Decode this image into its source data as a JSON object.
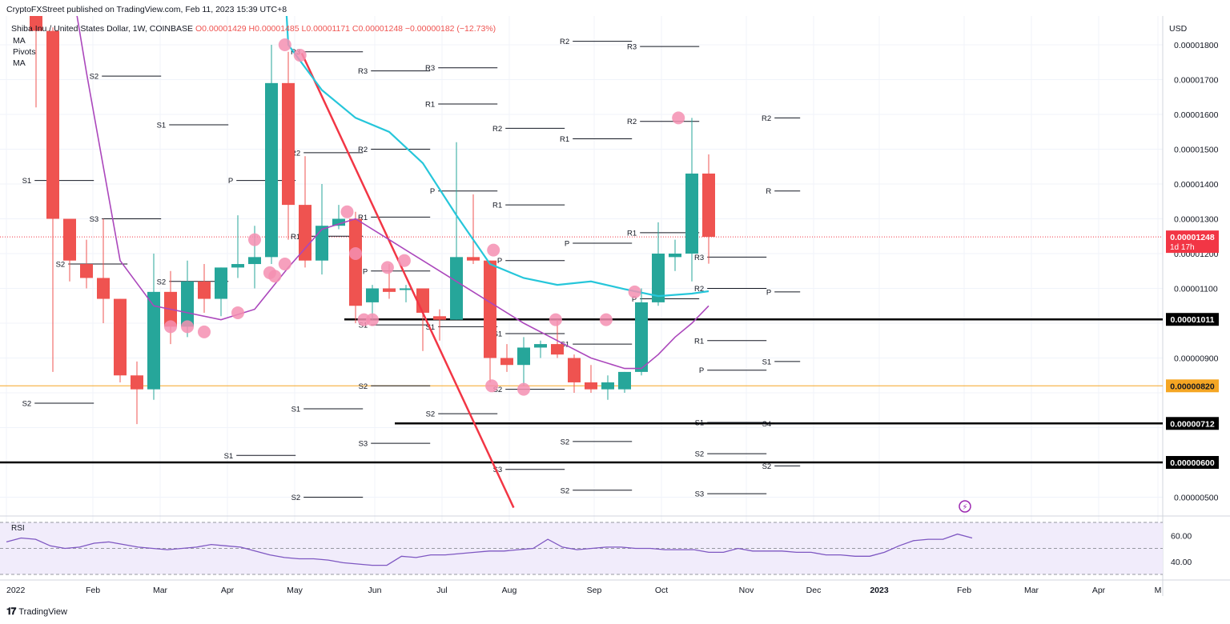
{
  "header": {
    "publisher": "CryptoFXStreet published on TradingView.com, Feb 11, 2023 15:39 UTC+8",
    "symbol": "Shiba Inu / United States Dollar, 1W, COINBASE",
    "ohlc": "O0.00001429  H0.00001485  L0.00001171  C0.00001248  −0.00000182 (−12.73%)"
  },
  "indicators": [
    "MA",
    "Pivots",
    "MA"
  ],
  "branding": "TradingView",
  "colors": {
    "up": "#26a69a",
    "down": "#ef5350",
    "ma_fast": "#ab47bc",
    "ma_slow": "#26c6da",
    "trendline": "#f23645",
    "marker": "#f48fb1",
    "orange_level": "#f5a623",
    "price_tag": "#f23645"
  },
  "chart_data": {
    "type": "candlestick",
    "title": "Shiba Inu / United States Dollar, 1W, COINBASE",
    "y_axis_label": "USD",
    "y_ticks": [
      "0.00001800",
      "0.00001700",
      "0.00001600",
      "0.00001500",
      "0.00001400",
      "0.00001300",
      "0.00001200",
      "0.00001100",
      "0.00000900",
      "0.00000500"
    ],
    "x_ticks": [
      "2022",
      "Feb",
      "Mar",
      "Apr",
      "May",
      "Jun",
      "Jul",
      "Aug",
      "Sep",
      "Oct",
      "Nov",
      "Dec",
      "2023",
      "Feb",
      "Mar",
      "Apr",
      "M"
    ],
    "candles": [
      {
        "o": 1.9,
        "h": 1.95,
        "l": 1.62,
        "c": 1.84
      },
      {
        "o": 1.84,
        "h": 1.85,
        "l": 0.86,
        "c": 1.3
      },
      {
        "o": 1.3,
        "h": 1.3,
        "l": 1.12,
        "c": 1.18
      },
      {
        "o": 1.17,
        "h": 1.24,
        "l": 1.1,
        "c": 1.13
      },
      {
        "o": 1.13,
        "h": 1.3,
        "l": 1.0,
        "c": 1.07
      },
      {
        "o": 1.07,
        "h": 1.07,
        "l": 0.83,
        "c": 0.85
      },
      {
        "o": 0.85,
        "h": 0.89,
        "l": 0.71,
        "c": 0.81
      },
      {
        "o": 0.81,
        "h": 1.2,
        "l": 0.78,
        "c": 1.09
      },
      {
        "o": 1.09,
        "h": 1.15,
        "l": 0.94,
        "c": 0.99
      },
      {
        "o": 0.99,
        "h": 1.18,
        "l": 0.96,
        "c": 1.12
      },
      {
        "o": 1.12,
        "h": 1.17,
        "l": 1.03,
        "c": 1.07
      },
      {
        "o": 1.07,
        "h": 1.16,
        "l": 1.02,
        "c": 1.16
      },
      {
        "o": 1.16,
        "h": 1.31,
        "l": 1.13,
        "c": 1.17
      },
      {
        "o": 1.17,
        "h": 1.28,
        "l": 1.1,
        "c": 1.19
      },
      {
        "o": 1.19,
        "h": 1.8,
        "l": 1.17,
        "c": 1.69
      },
      {
        "o": 1.69,
        "h": 1.78,
        "l": 1.24,
        "c": 1.34
      },
      {
        "o": 1.34,
        "h": 1.48,
        "l": 1.16,
        "c": 1.18
      },
      {
        "o": 1.18,
        "h": 1.4,
        "l": 1.14,
        "c": 1.28
      },
      {
        "o": 1.28,
        "h": 1.34,
        "l": 1.27,
        "c": 1.3
      },
      {
        "o": 1.3,
        "h": 1.32,
        "l": 1.0,
        "c": 1.05
      },
      {
        "o": 1.06,
        "h": 1.11,
        "l": 1.01,
        "c": 1.1
      },
      {
        "o": 1.1,
        "h": 1.17,
        "l": 1.07,
        "c": 1.09
      },
      {
        "o": 1.1,
        "h": 1.11,
        "l": 1.06,
        "c": 1.1
      },
      {
        "o": 1.1,
        "h": 1.1,
        "l": 0.92,
        "c": 1.03
      },
      {
        "o": 1.02,
        "h": 1.04,
        "l": 0.95,
        "c": 1.01
      },
      {
        "o": 1.01,
        "h": 1.52,
        "l": 1.01,
        "c": 1.19
      },
      {
        "o": 1.19,
        "h": 1.37,
        "l": 1.17,
        "c": 1.18
      },
      {
        "o": 1.18,
        "h": 1.18,
        "l": 0.83,
        "c": 0.9
      },
      {
        "o": 0.9,
        "h": 0.94,
        "l": 0.86,
        "c": 0.88
      },
      {
        "o": 0.88,
        "h": 0.96,
        "l": 0.82,
        "c": 0.93
      },
      {
        "o": 0.93,
        "h": 0.95,
        "l": 0.9,
        "c": 0.94
      },
      {
        "o": 0.94,
        "h": 1.01,
        "l": 0.9,
        "c": 0.91
      },
      {
        "o": 0.9,
        "h": 0.91,
        "l": 0.8,
        "c": 0.83
      },
      {
        "o": 0.83,
        "h": 0.88,
        "l": 0.8,
        "c": 0.81
      },
      {
        "o": 0.81,
        "h": 0.85,
        "l": 0.78,
        "c": 0.83
      },
      {
        "o": 0.81,
        "h": 0.86,
        "l": 0.8,
        "c": 0.86
      },
      {
        "o": 0.86,
        "h": 1.1,
        "l": 0.85,
        "c": 1.06
      },
      {
        "o": 1.06,
        "h": 1.29,
        "l": 1.05,
        "c": 1.2
      },
      {
        "o": 1.19,
        "h": 1.24,
        "l": 1.15,
        "c": 1.2
      },
      {
        "o": 1.2,
        "h": 1.59,
        "l": 1.12,
        "c": 1.43
      },
      {
        "o": 1.43,
        "h": 1.485,
        "l": 1.171,
        "c": 1.248
      }
    ],
    "price_unit": "1e-5 USD",
    "horizontal_levels": [
      {
        "price": 1.011,
        "label": "0.00001011",
        "color": "#000000"
      },
      {
        "price": 0.82,
        "label": "0.00000820",
        "color": "#f5a623"
      },
      {
        "price": 0.712,
        "label": "0.00000712",
        "color": "#000000"
      },
      {
        "price": 0.6,
        "label": "0.00000600",
        "color": "#000000"
      }
    ],
    "current_price": {
      "label": "0.00001248",
      "countdown": "1d 17h"
    },
    "ma_fast": [
      [
        1.0,
        2.3
      ],
      [
        3.0,
        1.72
      ],
      [
        5.0,
        1.18
      ],
      [
        7.0,
        1.05
      ],
      [
        9.0,
        1.03
      ],
      [
        11.0,
        1.01
      ],
      [
        13.0,
        1.04
      ],
      [
        15.0,
        1.16
      ],
      [
        17.0,
        1.27
      ],
      [
        19.0,
        1.3
      ],
      [
        21.0,
        1.24
      ],
      [
        23.0,
        1.18
      ],
      [
        25.0,
        1.12
      ],
      [
        27.0,
        1.06
      ],
      [
        29.0,
        1.0
      ],
      [
        31.0,
        0.95
      ],
      [
        33.0,
        0.9
      ],
      [
        35.0,
        0.87
      ],
      [
        36.0,
        0.87
      ],
      [
        37.0,
        0.91
      ],
      [
        38.0,
        0.96
      ],
      [
        39.0,
        1.0
      ],
      [
        40.0,
        1.05
      ]
    ],
    "ma_slow": [
      [
        14.8,
        1.97
      ],
      [
        15.0,
        1.8
      ],
      [
        17.0,
        1.67
      ],
      [
        19.0,
        1.59
      ],
      [
        21.0,
        1.55
      ],
      [
        23.0,
        1.46
      ],
      [
        25.0,
        1.31
      ],
      [
        27.0,
        1.17
      ],
      [
        29.0,
        1.13
      ],
      [
        31.0,
        1.11
      ],
      [
        33.0,
        1.12
      ],
      [
        35.0,
        1.098
      ],
      [
        37.0,
        1.078
      ],
      [
        39.0,
        1.085
      ],
      [
        40.0,
        1.092
      ]
    ],
    "trendline": [
      [
        15.8,
        1.776
      ],
      [
        28.4,
        0.47
      ]
    ],
    "markers": [
      [
        14.8,
        1.8
      ],
      [
        15.7,
        1.77
      ],
      [
        14.8,
        1.17
      ],
      [
        13.0,
        1.24
      ],
      [
        12.0,
        1.03
      ],
      [
        13.9,
        1.145
      ],
      [
        14.2,
        1.135
      ],
      [
        9.0,
        0.99
      ],
      [
        10.0,
        0.975
      ],
      [
        8.0,
        0.99
      ],
      [
        18.5,
        1.32
      ],
      [
        19.0,
        1.2
      ],
      [
        19.5,
        1.01
      ],
      [
        20.0,
        1.01
      ],
      [
        20.9,
        1.16
      ],
      [
        21.9,
        1.18
      ],
      [
        27.2,
        1.21
      ],
      [
        27.1,
        0.82
      ],
      [
        29.0,
        0.81
      ],
      [
        30.9,
        1.01
      ],
      [
        33.9,
        1.01
      ],
      [
        35.6,
        1.09
      ],
      [
        38.2,
        1.59
      ]
    ],
    "pivot_levels": [
      {
        "label": "S2",
        "x1": 5.2,
        "x2": 9.2,
        "y": 1.71
      },
      {
        "label": "S1",
        "x1": 9.2,
        "x2": 13.2,
        "y": 1.57
      },
      {
        "label": "S3",
        "x1": 5.2,
        "x2": 9.2,
        "y": 1.3
      },
      {
        "label": "S2",
        "x1": 9.2,
        "x2": 13.2,
        "y": 1.12
      },
      {
        "label": "S1",
        "x1": 1.2,
        "x2": 5.2,
        "y": 1.41
      },
      {
        "label": "S2",
        "x1": 3.2,
        "x2": 7.2,
        "y": 1.17
      },
      {
        "label": "S2",
        "x1": 1.2,
        "x2": 5.2,
        "y": 0.77
      },
      {
        "label": "P",
        "x1": 13.2,
        "x2": 17.2,
        "y": 1.41
      },
      {
        "label": "S1",
        "x1": 13.2,
        "x2": 17.2,
        "y": 0.62
      },
      {
        "label": "R3",
        "x1": 17.2,
        "x2": 21.2,
        "y": 1.78
      },
      {
        "label": "R2",
        "x1": 17.2,
        "x2": 21.2,
        "y": 1.49
      },
      {
        "label": "R1",
        "x1": 17.2,
        "x2": 21.2,
        "y": 1.25
      },
      {
        "label": "S1",
        "x1": 17.2,
        "x2": 21.2,
        "y": 0.754
      },
      {
        "label": "S2",
        "x1": 17.2,
        "x2": 21.2,
        "y": 0.5
      },
      {
        "label": "R3",
        "x1": 21.2,
        "x2": 25.2,
        "y": 1.725
      },
      {
        "label": "R2",
        "x1": 21.2,
        "x2": 25.2,
        "y": 1.5
      },
      {
        "label": "R1",
        "x1": 21.2,
        "x2": 25.2,
        "y": 1.305
      },
      {
        "label": "P",
        "x1": 21.2,
        "x2": 25.2,
        "y": 1.15
      },
      {
        "label": "S1",
        "x1": 21.2,
        "x2": 25.2,
        "y": 0.995
      },
      {
        "label": "S2",
        "x1": 21.2,
        "x2": 25.2,
        "y": 0.82
      },
      {
        "label": "S3",
        "x1": 21.2,
        "x2": 25.2,
        "y": 0.655
      },
      {
        "label": "R3",
        "x1": 25.2,
        "x2": 29.2,
        "y": 1.734
      },
      {
        "label": "R1",
        "x1": 25.2,
        "x2": 29.2,
        "y": 1.63
      },
      {
        "label": "P",
        "x1": 25.2,
        "x2": 29.2,
        "y": 1.38
      },
      {
        "label": "S1",
        "x1": 25.2,
        "x2": 29.2,
        "y": 0.99
      },
      {
        "label": "S2",
        "x1": 25.2,
        "x2": 29.2,
        "y": 0.74
      },
      {
        "label": "R2",
        "x1": 29.2,
        "x2": 33.2,
        "y": 1.56
      },
      {
        "label": "R1",
        "x1": 29.2,
        "x2": 33.2,
        "y": 1.34
      },
      {
        "label": "P",
        "x1": 29.2,
        "x2": 33.2,
        "y": 1.18
      },
      {
        "label": "S1",
        "x1": 29.2,
        "x2": 33.2,
        "y": 0.97
      },
      {
        "label": "S2",
        "x1": 29.2,
        "x2": 33.2,
        "y": 0.81
      },
      {
        "label": "S3",
        "x1": 29.2,
        "x2": 33.2,
        "y": 0.58
      },
      {
        "label": "R2",
        "x1": 33.2,
        "x2": 37.2,
        "y": 1.81
      },
      {
        "label": "R1",
        "x1": 33.2,
        "x2": 37.2,
        "y": 1.53
      },
      {
        "label": "P",
        "x1": 33.2,
        "x2": 37.2,
        "y": 1.23
      },
      {
        "label": "S1",
        "x1": 33.2,
        "x2": 37.2,
        "y": 0.94
      },
      {
        "label": "S2",
        "x1": 33.2,
        "x2": 37.2,
        "y": 0.66
      },
      {
        "label": "S2",
        "x1": 33.2,
        "x2": 37.2,
        "y": 0.52
      },
      {
        "label": "R3",
        "x1": 37.2,
        "x2": 41.2,
        "y": 1.795
      },
      {
        "label": "R2",
        "x1": 37.2,
        "x2": 41.2,
        "y": 1.58
      },
      {
        "label": "R1",
        "x1": 37.2,
        "x2": 41.2,
        "y": 1.26
      },
      {
        "label": "P",
        "x1": 37.2,
        "x2": 41.2,
        "y": 1.07
      },
      {
        "label": "R3",
        "x1": 41.2,
        "x2": 45.2,
        "y": 1.19
      },
      {
        "label": "R2",
        "x1": 41.2,
        "x2": 45.2,
        "y": 1.1
      },
      {
        "label": "R1",
        "x1": 41.2,
        "x2": 45.2,
        "y": 0.95
      },
      {
        "label": "P",
        "x1": 41.2,
        "x2": 45.2,
        "y": 0.865
      },
      {
        "label": "S1",
        "x1": 41.2,
        "x2": 45.2,
        "y": 0.715
      },
      {
        "label": "S2",
        "x1": 41.2,
        "x2": 45.2,
        "y": 0.625
      },
      {
        "label": "S3",
        "x1": 41.2,
        "x2": 45.2,
        "y": 0.51
      },
      {
        "label": "R2",
        "x1": 45.2,
        "x2": 47.2,
        "y": 1.59
      },
      {
        "label": "R",
        "x1": 45.2,
        "x2": 47.2,
        "y": 1.38
      },
      {
        "label": "P",
        "x1": 45.2,
        "x2": 47.2,
        "y": 1.09
      },
      {
        "label": "S1",
        "x1": 45.2,
        "x2": 47.2,
        "y": 0.89
      },
      {
        "label": "S4",
        "x1": 45.2,
        "x2": 47.2,
        "y": 0.712
      },
      {
        "label": "S2",
        "x1": 45.2,
        "x2": 47.2,
        "y": 0.59
      }
    ],
    "rsi": {
      "label": "RSI",
      "levels": [
        "60.00",
        "40.00"
      ],
      "values": [
        55,
        58,
        57,
        52,
        50,
        51,
        54,
        55,
        53,
        51,
        50,
        49,
        50,
        51,
        53,
        52,
        51,
        48,
        45,
        43,
        42,
        42,
        41,
        39,
        38,
        37,
        37,
        44,
        43,
        45,
        45,
        46,
        47,
        48,
        48,
        49,
        50,
        57,
        51,
        49,
        50,
        51,
        51,
        50,
        50,
        49,
        49,
        49,
        47,
        47,
        50,
        48,
        48,
        48,
        47,
        47,
        45,
        45,
        44,
        44,
        47,
        52,
        56,
        57,
        57,
        61,
        58
      ]
    }
  }
}
